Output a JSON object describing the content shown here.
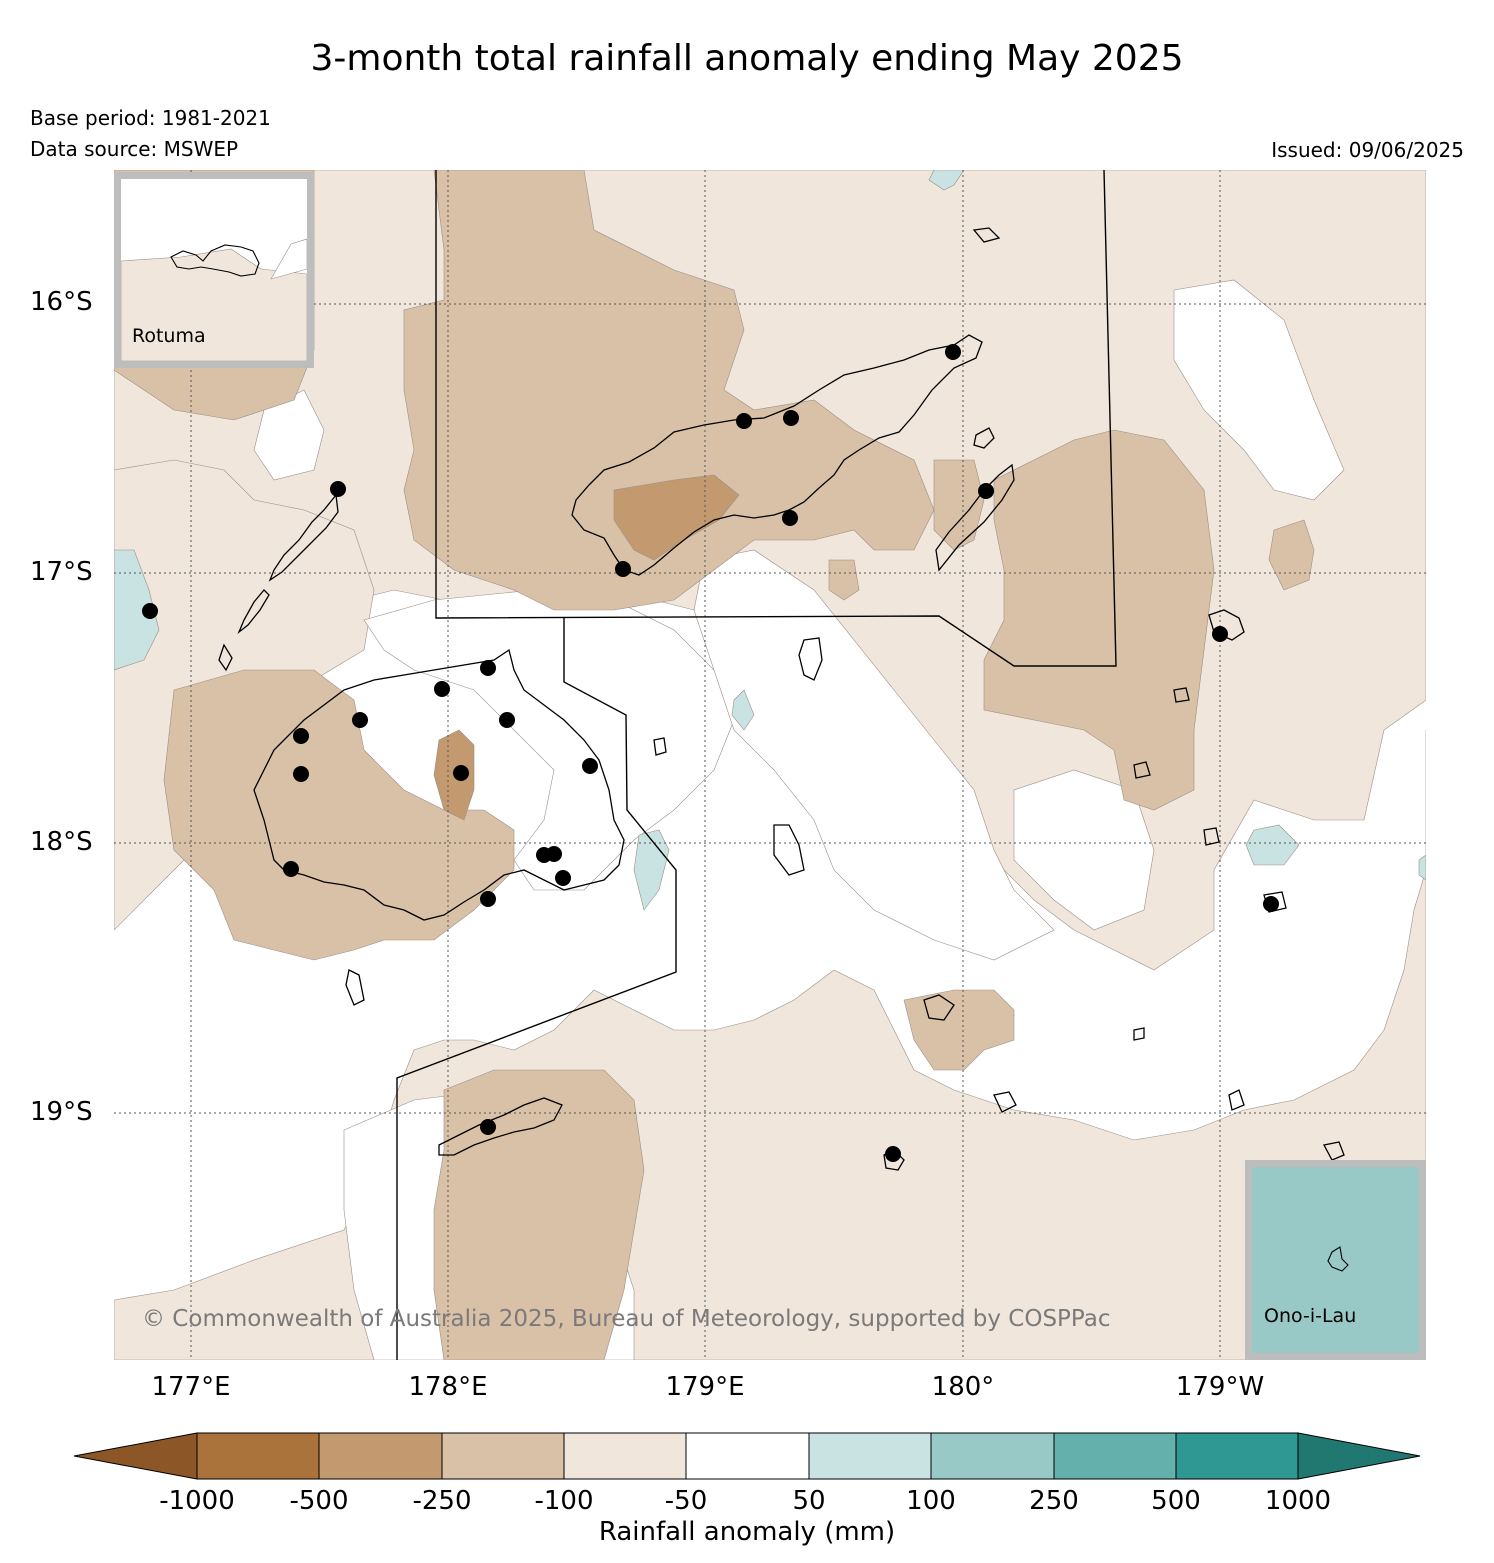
{
  "title": "3-month total rainfall anomaly ending May 2025",
  "base_period": "Base period: 1981-2021",
  "data_source": "Data source: MSWEP",
  "issued": "Issued: 09/06/2025",
  "copyright": "© Commonwealth of Australia 2025, Bureau of Meteorology, supported by COSPPac",
  "map": {
    "lat_labels": [
      "16°S",
      "17°S",
      "18°S",
      "19°S"
    ],
    "lon_labels": [
      "177°E",
      "178°E",
      "179°E",
      "180°",
      "179°W"
    ],
    "insets": [
      {
        "name": "Rotuma",
        "label": "Rotuma"
      },
      {
        "name": "Ono-i-Lau",
        "label": "Ono-i-Lau"
      }
    ]
  },
  "colors": {
    "c_m1000": "#8c5626",
    "c_m500": "#ab733c",
    "c_m250": "#c39a70",
    "c_m100": "#d9c1a7",
    "c_m50": "#f0e6dc",
    "c_0": "#ffffff",
    "c_50": "#c8e3e1",
    "c_100": "#98c9c7",
    "c_250": "#63b0ad",
    "c_500": "#2f9892",
    "c_1000": "#217871"
  },
  "colorbar": {
    "label": "Rainfall anomaly (mm)",
    "ticks": [
      "-1000",
      "-500",
      "-250",
      "-100",
      "-50",
      "50",
      "100",
      "250",
      "500",
      "1000"
    ]
  }
}
